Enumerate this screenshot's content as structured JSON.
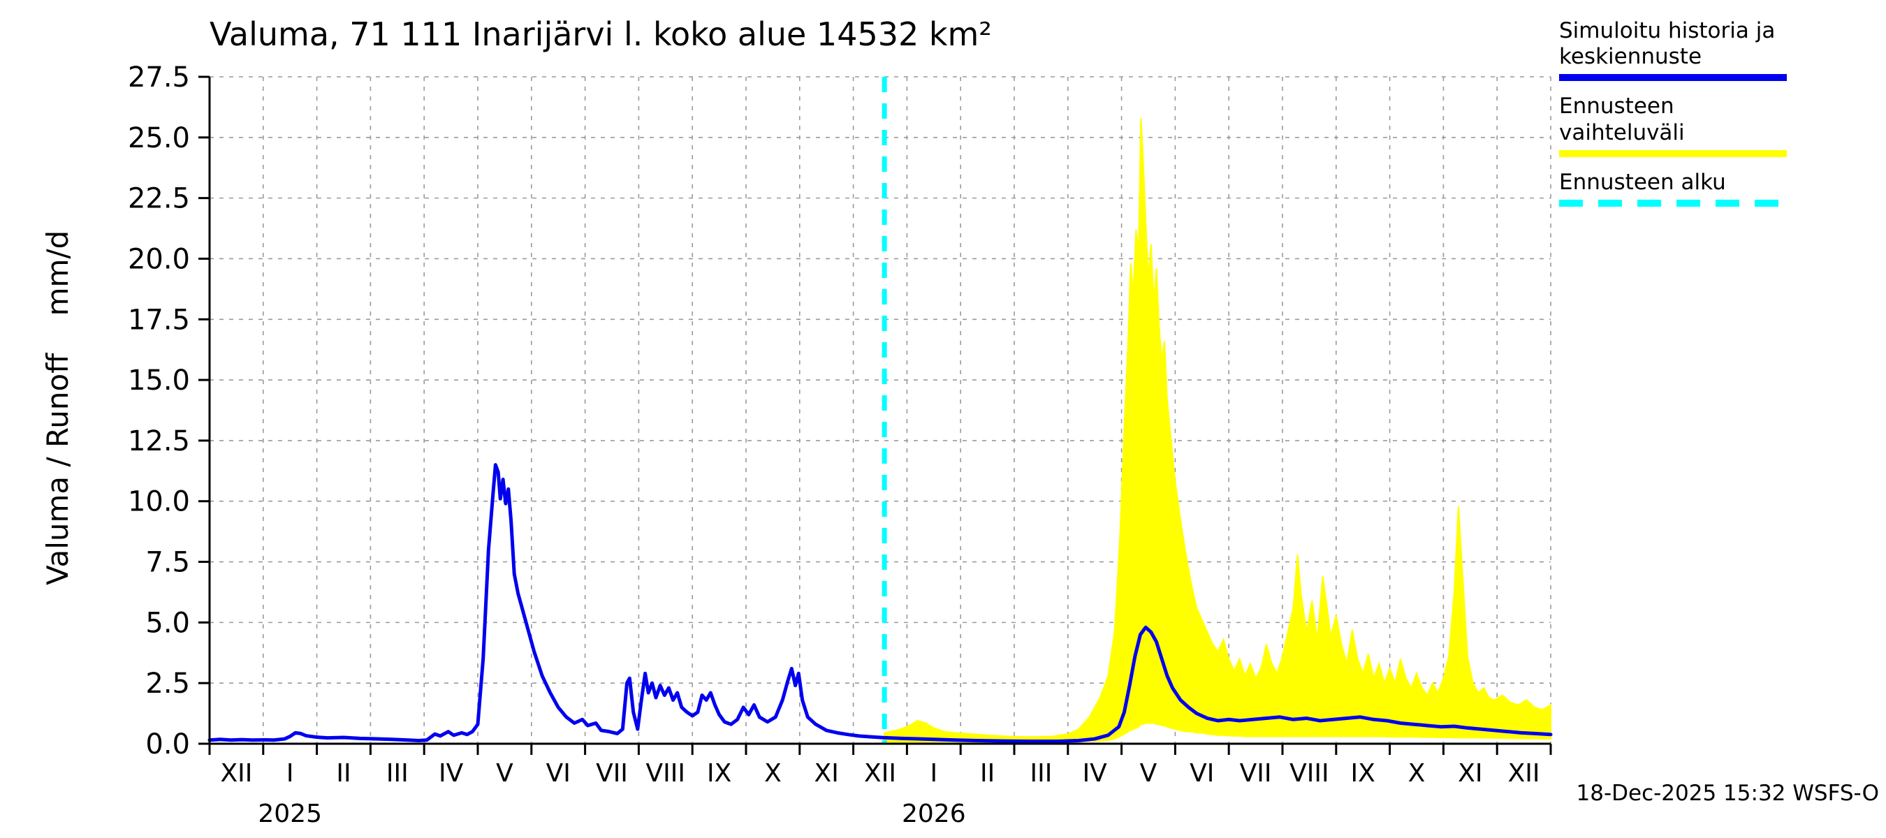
{
  "title": "Valuma, 71 111 Inarijärvi l. koko alue 14532 km²",
  "y_axis_label": "Valuma / Runoff    mm/d",
  "footer": "18-Dec-2025 15:32 WSFS-O",
  "legend": {
    "position": "top-right",
    "items": [
      {
        "label": "Simuloitu historia ja keskiennuste",
        "style": "solid",
        "color": "#0000ee"
      },
      {
        "label": "Ennusteen vaihteluväli",
        "style": "solid",
        "color": "#ffff00"
      },
      {
        "label": "Ennusteen alku",
        "style": "dashed",
        "color": "#00ffff"
      }
    ]
  },
  "chart_data": {
    "type": "line",
    "title": "Valuma, 71 111 Inarijärvi l. koko alue 14532 km²",
    "xlabel": "",
    "ylabel": "Valuma / Runoff mm/d",
    "grid": true,
    "legend_position": "top-right",
    "xlim": [
      0,
      25
    ],
    "ylim": [
      0,
      27.5
    ],
    "yticks": [
      0,
      2.5,
      5,
      7.5,
      10,
      12.5,
      15,
      17.5,
      20,
      22.5,
      25,
      27.5
    ],
    "x_unit": "months from Dec-2024 to Dec-2026",
    "month_labels": [
      "XII",
      "I",
      "II",
      "III",
      "IV",
      "V",
      "VI",
      "VII",
      "VIII",
      "IX",
      "X",
      "XI",
      "XII",
      "I",
      "II",
      "III",
      "IV",
      "V",
      "VI",
      "VII",
      "VIII",
      "IX",
      "X",
      "XI",
      "XII"
    ],
    "year_labels": [
      {
        "label": "2025",
        "x": 1.5
      },
      {
        "label": "2026",
        "x": 13.5
      }
    ],
    "forecast_start_x": 12.58,
    "forecast_start_date": "18-Dec-2025",
    "forecast_start_color": "#00ffff",
    "series": [
      {
        "name": "simulated-history-mean",
        "color": "#0000ee",
        "points": [
          [
            0,
            0.15
          ],
          [
            0.2,
            0.18
          ],
          [
            0.4,
            0.15
          ],
          [
            0.6,
            0.17
          ],
          [
            0.8,
            0.15
          ],
          [
            1.0,
            0.16
          ],
          [
            1.2,
            0.15
          ],
          [
            1.4,
            0.2
          ],
          [
            1.5,
            0.3
          ],
          [
            1.6,
            0.45
          ],
          [
            1.7,
            0.42
          ],
          [
            1.8,
            0.33
          ],
          [
            2.0,
            0.27
          ],
          [
            2.2,
            0.24
          ],
          [
            2.5,
            0.26
          ],
          [
            2.8,
            0.22
          ],
          [
            3.1,
            0.2
          ],
          [
            3.4,
            0.18
          ],
          [
            3.7,
            0.15
          ],
          [
            3.9,
            0.13
          ],
          [
            4.05,
            0.15
          ],
          [
            4.2,
            0.4
          ],
          [
            4.3,
            0.32
          ],
          [
            4.45,
            0.5
          ],
          [
            4.55,
            0.35
          ],
          [
            4.7,
            0.45
          ],
          [
            4.8,
            0.38
          ],
          [
            4.9,
            0.5
          ],
          [
            5.0,
            0.8
          ],
          [
            5.1,
            3.5
          ],
          [
            5.2,
            8.0
          ],
          [
            5.28,
            10.2
          ],
          [
            5.33,
            11.5
          ],
          [
            5.38,
            11.2
          ],
          [
            5.42,
            10.1
          ],
          [
            5.47,
            10.9
          ],
          [
            5.52,
            9.9
          ],
          [
            5.57,
            10.5
          ],
          [
            5.62,
            9.2
          ],
          [
            5.68,
            7.0
          ],
          [
            5.75,
            6.2
          ],
          [
            5.85,
            5.4
          ],
          [
            5.95,
            4.6
          ],
          [
            6.05,
            3.8
          ],
          [
            6.2,
            2.8
          ],
          [
            6.35,
            2.1
          ],
          [
            6.5,
            1.5
          ],
          [
            6.65,
            1.1
          ],
          [
            6.8,
            0.85
          ],
          [
            6.95,
            1.0
          ],
          [
            7.05,
            0.75
          ],
          [
            7.2,
            0.85
          ],
          [
            7.3,
            0.55
          ],
          [
            7.45,
            0.5
          ],
          [
            7.6,
            0.42
          ],
          [
            7.7,
            0.6
          ],
          [
            7.78,
            2.5
          ],
          [
            7.83,
            2.7
          ],
          [
            7.9,
            1.3
          ],
          [
            7.98,
            0.6
          ],
          [
            8.05,
            1.8
          ],
          [
            8.12,
            2.9
          ],
          [
            8.18,
            2.1
          ],
          [
            8.25,
            2.5
          ],
          [
            8.32,
            1.9
          ],
          [
            8.4,
            2.4
          ],
          [
            8.48,
            2.0
          ],
          [
            8.56,
            2.3
          ],
          [
            8.64,
            1.8
          ],
          [
            8.72,
            2.1
          ],
          [
            8.8,
            1.5
          ],
          [
            8.9,
            1.3
          ],
          [
            9.0,
            1.15
          ],
          [
            9.1,
            1.3
          ],
          [
            9.18,
            2.0
          ],
          [
            9.26,
            1.8
          ],
          [
            9.34,
            2.1
          ],
          [
            9.42,
            1.6
          ],
          [
            9.5,
            1.2
          ],
          [
            9.6,
            0.9
          ],
          [
            9.72,
            0.8
          ],
          [
            9.84,
            1.0
          ],
          [
            9.95,
            1.5
          ],
          [
            10.05,
            1.2
          ],
          [
            10.15,
            1.6
          ],
          [
            10.25,
            1.1
          ],
          [
            10.4,
            0.9
          ],
          [
            10.55,
            1.1
          ],
          [
            10.68,
            1.8
          ],
          [
            10.78,
            2.6
          ],
          [
            10.85,
            3.1
          ],
          [
            10.92,
            2.4
          ],
          [
            10.98,
            2.9
          ],
          [
            11.05,
            1.8
          ],
          [
            11.15,
            1.1
          ],
          [
            11.3,
            0.8
          ],
          [
            11.5,
            0.55
          ],
          [
            11.7,
            0.45
          ],
          [
            11.9,
            0.38
          ],
          [
            12.1,
            0.32
          ],
          [
            12.35,
            0.28
          ],
          [
            12.58,
            0.25
          ]
        ]
      },
      {
        "name": "forecast-mean",
        "color": "#0000ee",
        "points": [
          [
            12.58,
            0.25
          ],
          [
            12.9,
            0.22
          ],
          [
            13.2,
            0.2
          ],
          [
            13.5,
            0.18
          ],
          [
            13.9,
            0.15
          ],
          [
            14.3,
            0.13
          ],
          [
            14.8,
            0.11
          ],
          [
            15.3,
            0.1
          ],
          [
            15.8,
            0.1
          ],
          [
            16.2,
            0.13
          ],
          [
            16.5,
            0.2
          ],
          [
            16.75,
            0.35
          ],
          [
            16.95,
            0.7
          ],
          [
            17.05,
            1.3
          ],
          [
            17.15,
            2.4
          ],
          [
            17.25,
            3.6
          ],
          [
            17.35,
            4.5
          ],
          [
            17.45,
            4.8
          ],
          [
            17.55,
            4.6
          ],
          [
            17.65,
            4.2
          ],
          [
            17.75,
            3.5
          ],
          [
            17.85,
            2.8
          ],
          [
            17.95,
            2.3
          ],
          [
            18.1,
            1.8
          ],
          [
            18.25,
            1.5
          ],
          [
            18.4,
            1.25
          ],
          [
            18.6,
            1.05
          ],
          [
            18.8,
            0.95
          ],
          [
            19.0,
            1.0
          ],
          [
            19.2,
            0.95
          ],
          [
            19.45,
            1.0
          ],
          [
            19.7,
            1.05
          ],
          [
            19.95,
            1.1
          ],
          [
            20.2,
            1.0
          ],
          [
            20.45,
            1.05
          ],
          [
            20.7,
            0.95
          ],
          [
            20.95,
            1.0
          ],
          [
            21.2,
            1.05
          ],
          [
            21.45,
            1.1
          ],
          [
            21.7,
            1.0
          ],
          [
            21.95,
            0.95
          ],
          [
            22.2,
            0.85
          ],
          [
            22.45,
            0.8
          ],
          [
            22.7,
            0.75
          ],
          [
            22.95,
            0.7
          ],
          [
            23.2,
            0.72
          ],
          [
            23.45,
            0.65
          ],
          [
            23.7,
            0.6
          ],
          [
            23.95,
            0.55
          ],
          [
            24.2,
            0.5
          ],
          [
            24.45,
            0.45
          ],
          [
            24.7,
            0.42
          ],
          [
            25,
            0.38
          ]
        ]
      },
      {
        "name": "forecast-range",
        "color": "#ffff00",
        "band": [
          [
            12.58,
            0.05,
            0.45
          ],
          [
            12.8,
            0.05,
            0.55
          ],
          [
            13.0,
            0.05,
            0.7
          ],
          [
            13.2,
            0.05,
            0.95
          ],
          [
            13.35,
            0.05,
            0.85
          ],
          [
            13.5,
            0.05,
            0.65
          ],
          [
            13.7,
            0.05,
            0.5
          ],
          [
            13.9,
            0.05,
            0.45
          ],
          [
            14.2,
            0.05,
            0.4
          ],
          [
            14.5,
            0.05,
            0.35
          ],
          [
            14.9,
            0.05,
            0.3
          ],
          [
            15.3,
            0.05,
            0.28
          ],
          [
            15.7,
            0.05,
            0.3
          ],
          [
            16.0,
            0.05,
            0.4
          ],
          [
            16.2,
            0.08,
            0.6
          ],
          [
            16.4,
            0.1,
            1.1
          ],
          [
            16.6,
            0.12,
            1.9
          ],
          [
            16.75,
            0.15,
            2.8
          ],
          [
            16.87,
            0.2,
            4.6
          ],
          [
            16.97,
            0.3,
            8.5
          ],
          [
            17.05,
            0.4,
            13.0
          ],
          [
            17.12,
            0.5,
            16.5
          ],
          [
            17.17,
            0.55,
            19.8
          ],
          [
            17.22,
            0.6,
            18.6
          ],
          [
            17.27,
            0.65,
            21.2
          ],
          [
            17.32,
            0.7,
            20.3
          ],
          [
            17.36,
            0.8,
            25.8
          ],
          [
            17.4,
            0.8,
            24.2
          ],
          [
            17.45,
            0.85,
            21.5
          ],
          [
            17.5,
            0.85,
            19.2
          ],
          [
            17.55,
            0.85,
            20.6
          ],
          [
            17.6,
            0.85,
            18.2
          ],
          [
            17.65,
            0.8,
            19.6
          ],
          [
            17.7,
            0.8,
            17.2
          ],
          [
            17.75,
            0.75,
            15.8
          ],
          [
            17.8,
            0.75,
            16.6
          ],
          [
            17.85,
            0.7,
            14.2
          ],
          [
            17.92,
            0.65,
            12.6
          ],
          [
            18.0,
            0.6,
            10.8
          ],
          [
            18.1,
            0.55,
            9.2
          ],
          [
            18.2,
            0.5,
            7.8
          ],
          [
            18.3,
            0.5,
            6.6
          ],
          [
            18.4,
            0.45,
            5.6
          ],
          [
            18.5,
            0.45,
            5.1
          ],
          [
            18.6,
            0.4,
            4.6
          ],
          [
            18.7,
            0.38,
            4.1
          ],
          [
            18.8,
            0.35,
            3.8
          ],
          [
            18.9,
            0.35,
            4.3
          ],
          [
            19.0,
            0.33,
            3.5
          ],
          [
            19.1,
            0.32,
            3.0
          ],
          [
            19.2,
            0.32,
            3.5
          ],
          [
            19.3,
            0.3,
            2.8
          ],
          [
            19.4,
            0.3,
            3.3
          ],
          [
            19.5,
            0.3,
            2.7
          ],
          [
            19.6,
            0.3,
            3.1
          ],
          [
            19.7,
            0.3,
            4.1
          ],
          [
            19.8,
            0.3,
            3.3
          ],
          [
            19.9,
            0.3,
            2.9
          ],
          [
            20.0,
            0.3,
            3.6
          ],
          [
            20.1,
            0.3,
            4.6
          ],
          [
            20.2,
            0.3,
            5.6
          ],
          [
            20.28,
            0.3,
            7.8
          ],
          [
            20.35,
            0.3,
            6.1
          ],
          [
            20.45,
            0.3,
            4.6
          ],
          [
            20.55,
            0.3,
            5.9
          ],
          [
            20.65,
            0.3,
            4.3
          ],
          [
            20.75,
            0.3,
            6.9
          ],
          [
            20.82,
            0.3,
            5.8
          ],
          [
            20.9,
            0.3,
            4.4
          ],
          [
            21.0,
            0.3,
            5.3
          ],
          [
            21.1,
            0.3,
            4.1
          ],
          [
            21.2,
            0.3,
            3.3
          ],
          [
            21.3,
            0.3,
            4.7
          ],
          [
            21.4,
            0.3,
            3.5
          ],
          [
            21.5,
            0.3,
            2.9
          ],
          [
            21.6,
            0.3,
            3.7
          ],
          [
            21.7,
            0.3,
            2.7
          ],
          [
            21.8,
            0.3,
            3.3
          ],
          [
            21.9,
            0.3,
            2.5
          ],
          [
            22.0,
            0.28,
            3.1
          ],
          [
            22.1,
            0.28,
            2.5
          ],
          [
            22.2,
            0.28,
            3.5
          ],
          [
            22.3,
            0.28,
            2.7
          ],
          [
            22.4,
            0.28,
            2.3
          ],
          [
            22.5,
            0.28,
            2.9
          ],
          [
            22.6,
            0.27,
            2.3
          ],
          [
            22.7,
            0.27,
            2.0
          ],
          [
            22.8,
            0.27,
            2.5
          ],
          [
            22.9,
            0.26,
            2.1
          ],
          [
            23.0,
            0.26,
            2.7
          ],
          [
            23.1,
            0.26,
            3.6
          ],
          [
            23.2,
            0.25,
            6.2
          ],
          [
            23.28,
            0.25,
            9.8
          ],
          [
            23.35,
            0.25,
            7.2
          ],
          [
            23.45,
            0.25,
            3.6
          ],
          [
            23.55,
            0.25,
            2.5
          ],
          [
            23.65,
            0.25,
            2.1
          ],
          [
            23.75,
            0.24,
            2.3
          ],
          [
            23.85,
            0.24,
            1.9
          ],
          [
            23.95,
            0.23,
            1.8
          ],
          [
            24.1,
            0.23,
            2.0
          ],
          [
            24.25,
            0.22,
            1.7
          ],
          [
            24.4,
            0.22,
            1.6
          ],
          [
            24.55,
            0.21,
            1.8
          ],
          [
            24.7,
            0.21,
            1.5
          ],
          [
            24.85,
            0.2,
            1.4
          ],
          [
            25,
            0.2,
            1.6
          ]
        ]
      }
    ]
  }
}
